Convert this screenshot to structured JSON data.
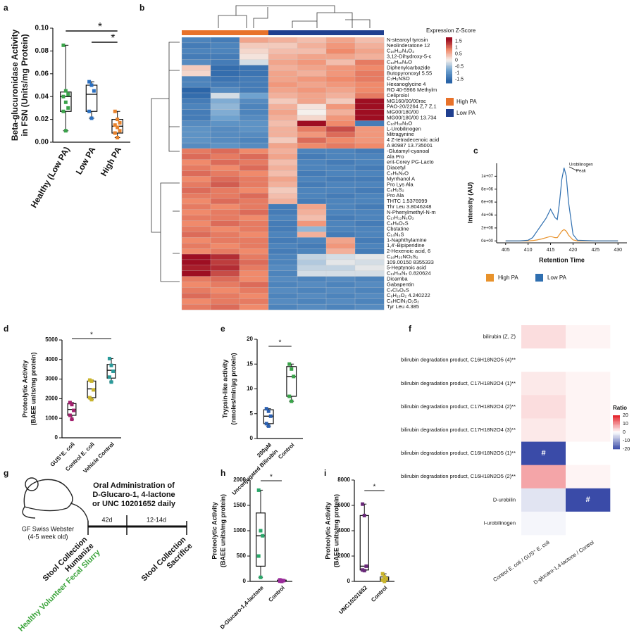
{
  "chart_data": [
    {
      "type": "box",
      "panel": "a",
      "ylabel": [
        "Beta-glucuronidase Activity",
        "in FSN (Units/mg Protein)"
      ],
      "categories": [
        "Healthy (Low PA)",
        "Low PA",
        "High PA"
      ],
      "boxes": [
        {
          "min": 0.01,
          "q1": 0.027,
          "median": 0.04,
          "q3": 0.044,
          "max": 0.085
        },
        {
          "min": 0.021,
          "q1": 0.027,
          "median": 0.042,
          "q3": 0.05,
          "max": 0.053
        },
        {
          "min": 0.004,
          "q1": 0.008,
          "median": 0.014,
          "q3": 0.02,
          "max": 0.027
        }
      ],
      "points": [
        [
          0.085,
          0.045,
          0.042,
          0.04,
          0.035,
          0.03,
          0.027,
          0.01
        ],
        [
          0.053,
          0.05,
          0.045,
          0.027,
          0.021
        ],
        [
          0.027,
          0.02,
          0.017,
          0.015,
          0.013,
          0.01,
          0.008,
          0.004
        ]
      ],
      "point_colors": [
        "#3aa34a",
        "#2a6fc0",
        "#e8822b"
      ],
      "ylim": [
        0,
        0.1
      ],
      "yticks": [
        {
          "value": 0,
          "label": "0.00"
        },
        {
          "value": 0.02,
          "label": "0.02"
        },
        {
          "value": 0.04,
          "label": "0.04"
        },
        {
          "value": 0.06,
          "label": "0.06"
        },
        {
          "value": 0.08,
          "label": "0.08"
        },
        {
          "value": 0.1,
          "label": "0.10"
        }
      ],
      "significance": [
        "*",
        "*"
      ]
    },
    {
      "type": "heatmap",
      "panel": "b",
      "colorbar_title": "Expression Z-Score",
      "colorbar_ticks": [
        1.5,
        1,
        0.5,
        0,
        -0.5,
        -1,
        -1.5
      ],
      "legend": [
        {
          "name": "High PA",
          "color": "#e8722a"
        },
        {
          "name": "Low PA",
          "color": "#1f3f8f"
        }
      ],
      "column_colors": [
        "#e8722a",
        "#e8722a",
        "#e8722a",
        "#1f3f8f",
        "#1f3f8f",
        "#1f3f8f",
        "#1f3f8f"
      ],
      "rows": [
        "N-stearoyl tyrosin",
        "Neolinderatone 12",
        "C₁₆H₁₂N₄O₃",
        "3,12-Dihydroxy-5-c",
        "C₁₂H₁₆N₂O",
        "Diphenylcarbazide",
        "Butopyronoxyl 5.55",
        "C₇H₅NSO",
        "Hexanoglycine 4",
        "RO 40-5966 Methylm",
        "Celiprolol",
        "MG160/00/00rac",
        "PAO-20/2264 Z,7 Z,1",
        "MG00/180/00",
        "MG00/180/00 13.734",
        "C₁₀H₁₆N₂O",
        "L-Urobilinogen",
        "Mitragynine",
        "4 Z-tetradecenoic acid",
        "A 80987 13.735001",
        "-Glutamyl-cyanoal",
        "Ala Pro",
        "ent-Corey PG-Lacto",
        "Diacetyl",
        "C₂H₅N₂O",
        "Myrrhanol A",
        "Pro Lys Ala",
        "C₆H₂S₂",
        "Pro Ala",
        "THTC 1.5376999",
        "Thr Leu 3.8046248",
        "N-Phenylmethyl-N-m",
        "C₁₇H₁₂N₄O₂",
        "C₆H₉O₂S",
        "Cbstatine",
        "C₁₄N₄S",
        "1-Naphthylamine",
        "1,4'-Bipiperidine",
        "2-Hexenoic acid, 6",
        "C₁₈H₂₅NO₅S₂",
        "109.00150 8355333",
        "5-Heptynoic acid",
        "C₁₁H₁₁N₂ 0.820624",
        "Dicamba",
        "Gabapentin",
        "C₇Cl₂O₂S",
        "C₈H₁₀O₂ 4.240222",
        "C₈HClN₂O₂S₂",
        "Tyr Leu 4.385"
      ],
      "values": [
        [
          -1.2,
          -1.3,
          0.6,
          0.5,
          0.4,
          0.6,
          0.4
        ],
        [
          -1.3,
          -1.2,
          0.3,
          0.3,
          0.5,
          0.7,
          0.5
        ],
        [
          -1.2,
          -1.2,
          0.2,
          0.4,
          0.4,
          0.8,
          0.6
        ],
        [
          -1.3,
          -1.3,
          0.1,
          0.5,
          0.6,
          0.6,
          0.5
        ],
        [
          -1.1,
          -1.3,
          -0.2,
          0.6,
          0.7,
          0.4,
          0.9
        ],
        [
          0.3,
          -1.5,
          -1.4,
          0.5,
          0.6,
          0.7,
          0.8
        ],
        [
          0.2,
          -1.5,
          -1.4,
          0.6,
          0.5,
          0.7,
          0.9
        ],
        [
          -1.2,
          -1.4,
          -1.3,
          0.6,
          0.7,
          0.8,
          0.9
        ],
        [
          -1.2,
          -1.3,
          -1.3,
          0.7,
          0.6,
          0.7,
          0.8
        ],
        [
          -1.6,
          -1.1,
          -1.3,
          0.6,
          0.7,
          0.6,
          0.8
        ],
        [
          -1.5,
          -0.2,
          -0.8,
          0.5,
          0.6,
          0.5,
          0.9
        ],
        [
          -1.3,
          -0.7,
          -1.1,
          0.3,
          0.6,
          0.3,
          1.7
        ],
        [
          -1.2,
          -0.6,
          -1.2,
          0.5,
          0.1,
          0.7,
          1.6
        ],
        [
          -1.3,
          -0.7,
          -1.2,
          0.6,
          0,
          0.5,
          1.6
        ],
        [
          -1.3,
          -0.8,
          -1.1,
          0.5,
          0.2,
          0.7,
          1.7
        ],
        [
          -1.1,
          -1,
          -1,
          0.4,
          1.6,
          0.8,
          -1.3
        ],
        [
          -1,
          -1.1,
          -1,
          0.5,
          0.9,
          1.2,
          0.7
        ],
        [
          -1,
          -1.1,
          -1.1,
          0.5,
          0.7,
          1,
          0.7
        ],
        [
          -1,
          -1.1,
          -1.2,
          0.3,
          1,
          0.8,
          0.7
        ],
        [
          -1.1,
          -1,
          -1.1,
          0.6,
          0.8,
          0.9,
          0.8
        ],
        [
          0.9,
          1,
          0.8,
          0.5,
          -1.2,
          -1.2,
          -1.3
        ],
        [
          1,
          0.9,
          1,
          0.6,
          -1.3,
          -1.2,
          -1.2
        ],
        [
          0.8,
          1,
          0.9,
          0.4,
          -1.2,
          -1.3,
          -1.2
        ],
        [
          0.9,
          0.8,
          1,
          0.5,
          -1.2,
          -1.2,
          -1.3
        ],
        [
          1,
          0.9,
          0.8,
          0.4,
          -1.3,
          -1.2,
          -1.2
        ],
        [
          0.8,
          1,
          0.9,
          0.6,
          -1.2,
          -1.3,
          -1.3
        ],
        [
          0.9,
          1.1,
          0.9,
          0.5,
          -1.3,
          -1.2,
          -1.2
        ],
        [
          1,
          0.9,
          0.8,
          0.3,
          -1.2,
          -1.2,
          -1.3
        ],
        [
          0.9,
          0.9,
          1,
          0.4,
          -1.2,
          -1.3,
          -1.2
        ],
        [
          0.8,
          1,
          0.9,
          0.5,
          -1.3,
          -1.2,
          -1.2
        ],
        [
          0.9,
          0.8,
          0.9,
          -1.3,
          0.6,
          -1.2,
          -1.3
        ],
        [
          0.8,
          0.9,
          1,
          -1.3,
          0.5,
          -1.2,
          -1.2
        ],
        [
          0.9,
          0.9,
          0.8,
          -1.2,
          0.4,
          -1.3,
          -1.2
        ],
        [
          0.8,
          1,
          0.9,
          -1.3,
          0.7,
          -1.2,
          -1.3
        ],
        [
          0.9,
          0.8,
          0.9,
          -1.3,
          -0.6,
          -1.2,
          -1.2
        ],
        [
          1,
          0.9,
          0.8,
          -1.2,
          0.5,
          -1.3,
          -1.2
        ],
        [
          0.8,
          0.9,
          0.9,
          -1.3,
          -1.2,
          0.6,
          -1.3
        ],
        [
          0.9,
          0.8,
          0.9,
          -1.2,
          -1.3,
          0.7,
          -1.2
        ],
        [
          0.8,
          0.9,
          0.8,
          -1.3,
          -1.2,
          0.5,
          -1.3
        ],
        [
          1.6,
          1.4,
          0.9,
          -1.2,
          -0.3,
          -0.2,
          -0.1
        ],
        [
          1.7,
          1.3,
          1,
          -1.2,
          -0.4,
          -0.1,
          -0.2
        ],
        [
          1.5,
          1.4,
          0.9,
          -1.1,
          -0.3,
          -0.3,
          -0.1
        ],
        [
          1.6,
          1.2,
          0.8,
          -1.2,
          -0.2,
          -0.2,
          -0.2
        ],
        [
          0.9,
          1,
          0.8,
          -1.1,
          -1.2,
          -1.1,
          -1.2
        ],
        [
          0.8,
          0.9,
          1,
          -1.2,
          -1.1,
          -1.2,
          -1.1
        ],
        [
          0.9,
          0.8,
          0.9,
          -1.1,
          -1.2,
          -1.1,
          -1.2
        ],
        [
          1,
          0.9,
          0.8,
          -1.2,
          -1.1,
          -1.2,
          -1.1
        ],
        [
          0.8,
          0.9,
          0.9,
          -1.1,
          -1.2,
          -1.1,
          -1.2
        ],
        [
          0.9,
          1,
          0.8,
          -1.2,
          -1.1,
          -1.2,
          -1.1
        ]
      ]
    },
    {
      "type": "line",
      "panel": "c",
      "xlabel": "Retention Time",
      "ylabel": "Intensity (AU)",
      "annotation": [
        "Urobilinogen",
        "Peak"
      ],
      "x": [
        405,
        408,
        410,
        411,
        412,
        413,
        414,
        415,
        416,
        416.5,
        417,
        417.5,
        418,
        418.5,
        419,
        420,
        421,
        425,
        430
      ],
      "series": [
        {
          "name": "High PA",
          "color": "#e8922b",
          "values": [
            0,
            0,
            0,
            50000,
            150000,
            300000,
            500000,
            700000,
            500000,
            500000,
            1000000,
            1500000,
            1750000,
            1500000,
            900000,
            150000,
            0,
            0,
            0
          ]
        },
        {
          "name": "Low PA",
          "color": "#2f6fb0",
          "values": [
            0,
            0,
            100000,
            500000,
            1500000,
            2500000,
            3500000,
            4900000,
            3600000,
            3300000,
            6000000,
            9500000,
            11300000,
            10000000,
            6000000,
            1000000,
            100000,
            0,
            0
          ]
        }
      ],
      "xlim": [
        403,
        432
      ],
      "xticks": [
        405,
        410,
        415,
        420,
        425,
        430
      ],
      "ylim": [
        -300000,
        12000000
      ],
      "yticks": [
        {
          "value": 0,
          "label": "0e+00"
        },
        {
          "value": 2000000,
          "label": "2e+06"
        },
        {
          "value": 4000000,
          "label": "4e+06"
        },
        {
          "value": 6000000,
          "label": "6e+06"
        },
        {
          "value": 8000000,
          "label": "8e+06"
        },
        {
          "value": 10000000,
          "label": "1e+07"
        }
      ]
    },
    {
      "type": "box",
      "panel": "d",
      "ylabel": [
        "Proteolytic Activity",
        "(BAEE units/mg protein)"
      ],
      "categories": [
        "GUS⁺E. coli",
        "Control E. coli",
        "Vehicle Control"
      ],
      "boxes": [
        {
          "min": 950,
          "q1": 1150,
          "median": 1450,
          "q3": 1750,
          "max": 1800
        },
        {
          "min": 1950,
          "q1": 2050,
          "median": 2500,
          "q3": 2900,
          "max": 2950
        },
        {
          "min": 2850,
          "q1": 3050,
          "median": 3450,
          "q3": 3750,
          "max": 4050
        }
      ],
      "points": [
        [
          1800,
          1700,
          1400,
          1150,
          950
        ],
        [
          2950,
          2900,
          2450,
          2050,
          1950
        ],
        [
          4050,
          3700,
          3400,
          3100,
          2850
        ]
      ],
      "point_colors": [
        "#a3206e",
        "#c9b42c",
        "#2a9a9a"
      ],
      "ylim": [
        0,
        5000
      ],
      "yticks": [
        0,
        1000,
        2000,
        3000,
        4000,
        5000
      ],
      "significance": [
        "*"
      ]
    },
    {
      "type": "box",
      "panel": "e",
      "ylabel": [
        "Trypsin-like activity",
        "(nmoles/min/µg protein)"
      ],
      "categories": [
        [
          "200μM",
          "Unconjugated Bilirubin"
        ],
        "Control"
      ],
      "boxes": [
        {
          "min": 2.5,
          "q1": 3,
          "median": 4.5,
          "q3": 5.8,
          "max": 6
        },
        {
          "min": 7.5,
          "q1": 8.5,
          "median": 12.5,
          "q3": 14.5,
          "max": 15
        }
      ],
      "points": [
        [
          6,
          5.5,
          4.5,
          3,
          2.5
        ],
        [
          15,
          14,
          12.5,
          8.5,
          7.5
        ]
      ],
      "point_colors": [
        "#2a5fb0",
        "#3aa34a"
      ],
      "ylim": [
        0,
        20
      ],
      "yticks": [
        0,
        5,
        10,
        15,
        20
      ],
      "significance": [
        "*"
      ]
    },
    {
      "type": "ratio-heatmap",
      "panel": "f",
      "colorbar_title": "Ratio",
      "rows": [
        "bilirubin (Z, Z)",
        "bilirubin degradation product, C16H18N2O5 (4)**",
        "bilirubin degradation product, C17H18N2O4 (1)**",
        "bilirubin degradation product, C17H18N2O4 (2)**",
        "bilirubin degradation product, C17H18N2O4 (3)**",
        "bilirubin degradation product, C16H18N2O5 (1)**",
        "bilirubin degradation product, C16H18N2O5 (2)**",
        "D-urobilin",
        "I-urobilinogen"
      ],
      "columns": [
        "Control E. coli / GUS⁺ E. coli",
        "D-glucaro-1,4-lactone / Control"
      ],
      "values": [
        [
          3,
          1
        ],
        [
          0,
          0
        ],
        [
          2,
          1
        ],
        [
          3,
          1
        ],
        [
          2,
          1
        ],
        [
          -20,
          0
        ],
        [
          8,
          1
        ],
        [
          -3,
          -20
        ],
        [
          -1,
          0
        ]
      ],
      "value_labels": [
        [
          null,
          null
        ],
        [
          null,
          null
        ],
        [
          null,
          null
        ],
        [
          null,
          null
        ],
        [
          null,
          null
        ],
        [
          "#",
          null
        ],
        [
          null,
          null
        ],
        [
          null,
          "#"
        ],
        [
          null,
          null
        ]
      ],
      "colorbar_ticks": [
        20,
        10,
        0,
        -10,
        -20
      ]
    },
    {
      "type": "box",
      "panel": "h",
      "ylabel": [
        "Proteolytic Activity",
        "(BAEE units/mg protein)"
      ],
      "categories": [
        "D-Glucaro-1,4-lactone",
        "Control"
      ],
      "boxes": [
        {
          "min": 80,
          "q1": 300,
          "median": 900,
          "q3": 1350,
          "max": 1800
        },
        {
          "min": 0,
          "q1": 5,
          "median": 15,
          "q3": 25,
          "max": 30
        }
      ],
      "points": [
        [
          1800,
          1000,
          900,
          500,
          80
        ],
        [
          30,
          20,
          15,
          5,
          0
        ]
      ],
      "point_colors": [
        "#2aa86a",
        "#9a2a9a"
      ],
      "ylim": [
        0,
        2000
      ],
      "yticks": [
        0,
        500,
        1000,
        1500,
        2000
      ],
      "significance": [
        "*"
      ]
    },
    {
      "type": "box",
      "panel": "i",
      "ylabel": [
        "Proteolytic Activity",
        "(BAEE units/mg protein)"
      ],
      "categories": [
        "UNC10201652",
        "Control"
      ],
      "boxes": [
        {
          "min": 850,
          "q1": 900,
          "median": 1200,
          "q3": 5200,
          "max": 6100
        },
        {
          "min": 0,
          "q1": 100,
          "median": 200,
          "q3": 350,
          "max": 600
        }
      ],
      "points": [
        [
          6100,
          5200,
          1200,
          900,
          850
        ],
        [
          600,
          350,
          200,
          100,
          0
        ]
      ],
      "point_colors": [
        "#6a2a7a",
        "#c9b42c"
      ],
      "ylim": [
        0,
        8000
      ],
      "yticks": [
        0,
        2000,
        4000,
        6000,
        8000
      ],
      "significance": [
        "*"
      ]
    }
  ],
  "diagram_g": {
    "panel": "g",
    "mouse": [
      "GF Swiss Webster",
      "(4-5 week old)"
    ],
    "treatment": [
      "Oral Administration of",
      "D-Glucaro-1, 4-lactone",
      "or UNC 10201652 daily"
    ],
    "durations": [
      "42d",
      "12-14d"
    ],
    "left_steps": [
      "Stool Collection",
      "Humanize",
      "Healthy Volunteer Fecal Slurry"
    ],
    "right_steps": [
      "Stool Collection",
      "Sacrifice"
    ]
  }
}
